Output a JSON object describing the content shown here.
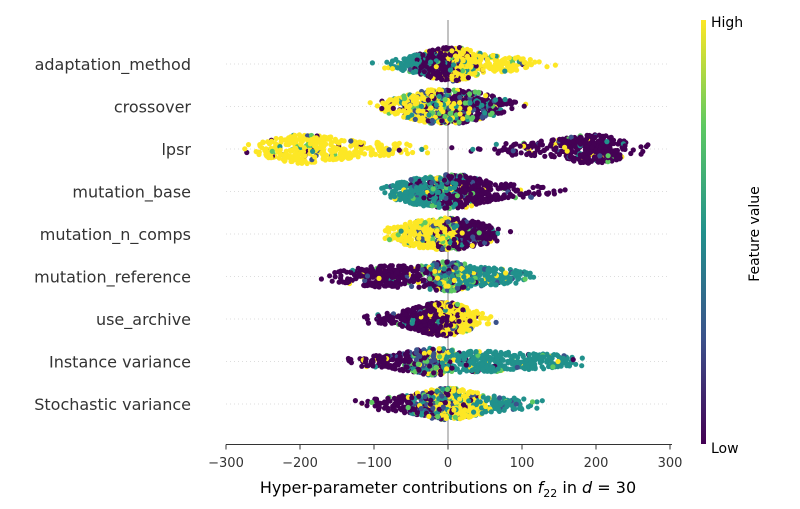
{
  "chart_data": {
    "type": "scatter",
    "subtype": "shap-beeswarm",
    "xlabel_prefix": "Hyper-parameter contributions on ",
    "xlabel_math_f": "f",
    "xlabel_math_sub": "22",
    "xlabel_mid": " in ",
    "xlabel_math_d": "d",
    "xlabel_eq": " = 30",
    "xlim": [
      -300,
      300
    ],
    "xticks": [
      -300,
      -200,
      -100,
      0,
      100,
      200,
      300
    ],
    "xtick_labels": [
      "−300",
      "−200",
      "−100",
      "0",
      "100",
      "200",
      "300"
    ],
    "colorbar": {
      "label": "Feature value",
      "high": "High",
      "low": "Low",
      "colormap": [
        "#440154",
        "#3b528b",
        "#21918c",
        "#5ec962",
        "#fde725"
      ]
    },
    "features": [
      {
        "name": "adaptation_method",
        "min": -115,
        "max": 165
      },
      {
        "name": "crossover",
        "min": -115,
        "max": 120
      },
      {
        "name": "lpsr",
        "min": -275,
        "max": 275
      },
      {
        "name": "mutation_base",
        "min": -140,
        "max": 195
      },
      {
        "name": "mutation_n_comps",
        "min": -145,
        "max": 145
      },
      {
        "name": "mutation_reference",
        "min": -190,
        "max": 140
      },
      {
        "name": "use_archive",
        "min": -115,
        "max": 120
      },
      {
        "name": "Instance variance",
        "min": -135,
        "max": 190
      },
      {
        "name": "Stochastic variance",
        "min": -140,
        "max": 155
      }
    ]
  }
}
